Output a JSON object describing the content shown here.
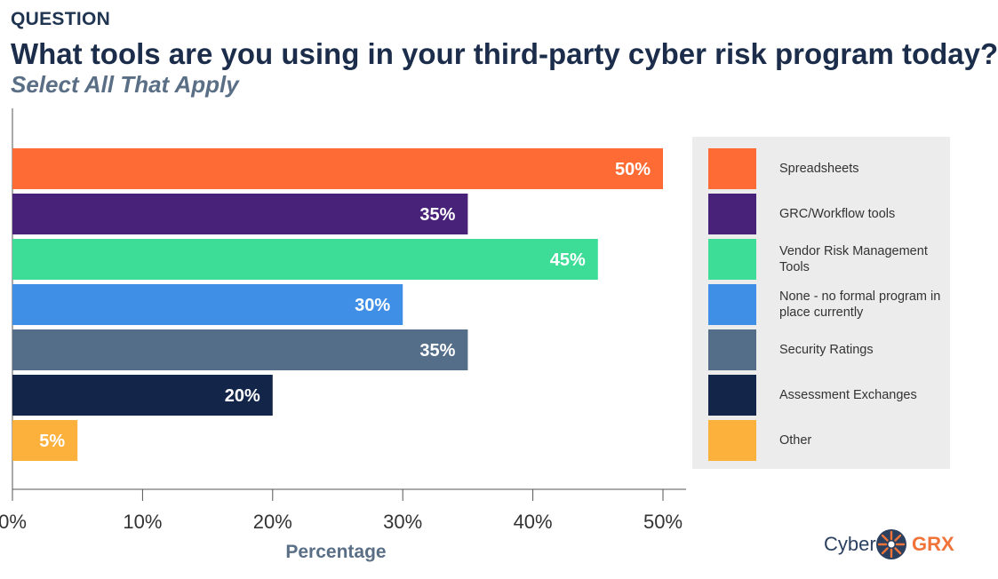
{
  "header": {
    "eyebrow": "QUESTION",
    "title": "What tools are you using in your third-party cyber risk program today?",
    "subtitle": "Select All That Apply"
  },
  "chart_data": {
    "type": "bar",
    "orientation": "horizontal",
    "categories": [
      "Spreadsheets",
      "GRC/Workflow tools",
      "Vendor Risk Management Tools",
      "None - no formal program in place currently",
      "Security Ratings",
      "Assessment Exchanges",
      "Other"
    ],
    "values": [
      50,
      35,
      45,
      30,
      35,
      20,
      5
    ],
    "data_labels": [
      "50%",
      "35%",
      "45%",
      "30%",
      "35%",
      "20%",
      "5%"
    ],
    "colors": [
      "#ff6b35",
      "#482278",
      "#3ddc97",
      "#3f8fe6",
      "#546e8a",
      "#13264a",
      "#fbb13c"
    ],
    "xlabel": "Percentage",
    "xlim": [
      0,
      50
    ],
    "xticks": [
      "0%",
      "10%",
      "20%",
      "30%",
      "40%",
      "50%"
    ],
    "legend_placement": "right",
    "grid": false
  },
  "legend": {
    "items": [
      {
        "label": "Spreadsheets",
        "color": "#ff6b35"
      },
      {
        "label": "GRC/Workflow tools",
        "color": "#482278"
      },
      {
        "label": "Vendor Risk Management Tools",
        "color": "#3ddc97"
      },
      {
        "label": "None - no formal program in place currently",
        "color": "#3f8fe6"
      },
      {
        "label": "Security Ratings",
        "color": "#546e8a"
      },
      {
        "label": "Assessment Exchanges",
        "color": "#13264a"
      },
      {
        "label": "Other",
        "color": "#fbb13c"
      }
    ]
  },
  "logo": {
    "text_left": "Cyber",
    "text_right": "GRX",
    "icon": "gear-burst-icon",
    "accent_color": "#f0743a"
  }
}
